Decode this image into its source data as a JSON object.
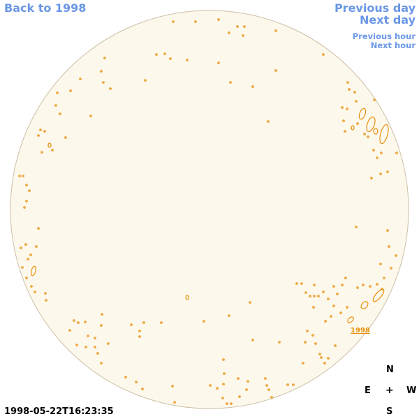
{
  "navigation": {
    "back_label": "Back to 1998",
    "previous_day_label": "Previous day",
    "next_day_label": "Next day",
    "previous_hour_label": "Previous hour",
    "next_hour_label": "Next hour"
  },
  "image": {
    "timestamp": "1998-05-22T16:23:35",
    "year_label": "1998",
    "disk_fill_color": "#fdf8ec",
    "disk_stroke_color": "#cdbfa6",
    "contour_color": "#e8900c"
  },
  "compass": {
    "north": "N",
    "east": "E",
    "center": "+",
    "west": "W",
    "south": "S"
  },
  "colors": {
    "link": "#6a97e6",
    "text": "#000000"
  }
}
